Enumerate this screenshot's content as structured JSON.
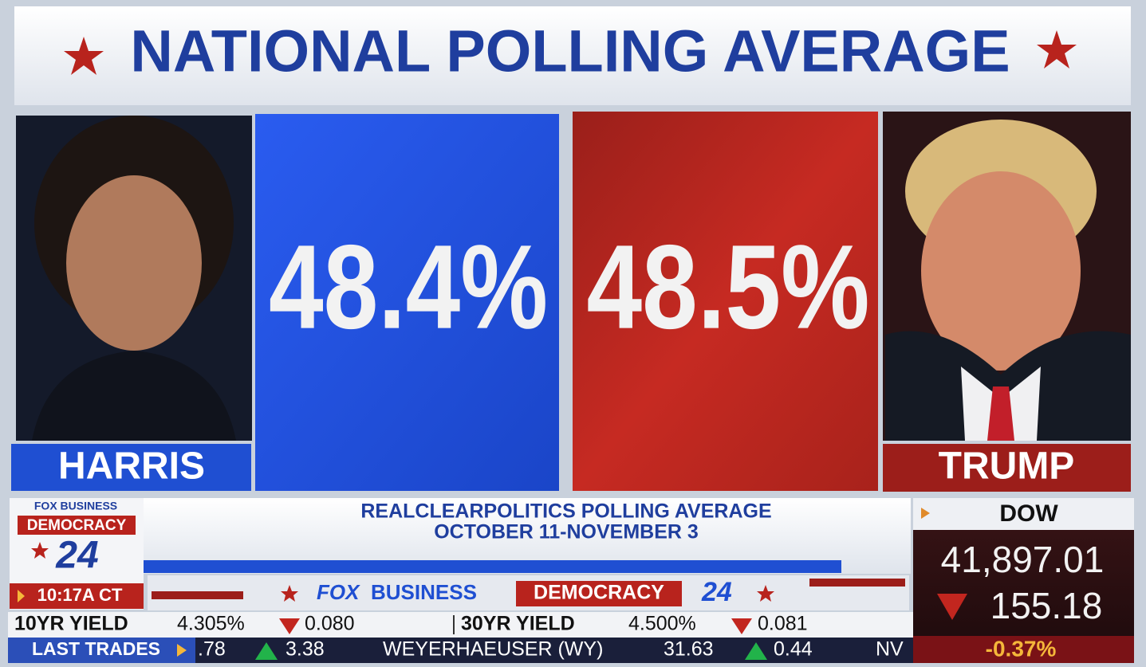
{
  "header": {
    "title": "NATIONAL POLLING AVERAGE"
  },
  "candidates": [
    {
      "name": "HARRIS",
      "value": "48.4%"
    },
    {
      "name": "TRUMP",
      "value": "48.5%"
    }
  ],
  "source": {
    "line1": "REALCLEARPOLITICS POLLING AVERAGE",
    "line2": "OCTOBER 11-NOVEMBER 3"
  },
  "logo": {
    "network": "FOX BUSINESS",
    "brand": "DEMOCRACY",
    "year": "24",
    "time": "10:17A CT"
  },
  "strip": {
    "network_fox": "FOX",
    "network_business": "BUSINESS",
    "brand": "DEMOCRACY",
    "year": "24"
  },
  "dow": {
    "label": "DOW",
    "value": "41,897.01",
    "change": "155.18",
    "percent": "-0.37%"
  },
  "ticker": {
    "row1": [
      "10YR YIELD",
      "4.305%",
      "0.080",
      "30YR YIELD",
      "4.500%",
      "0.081"
    ],
    "row2": [
      "LAST TRADES",
      ".78",
      "3.38",
      "WEYERHAEUSER (WY)",
      "31.63",
      "0.44",
      "NV"
    ]
  }
}
